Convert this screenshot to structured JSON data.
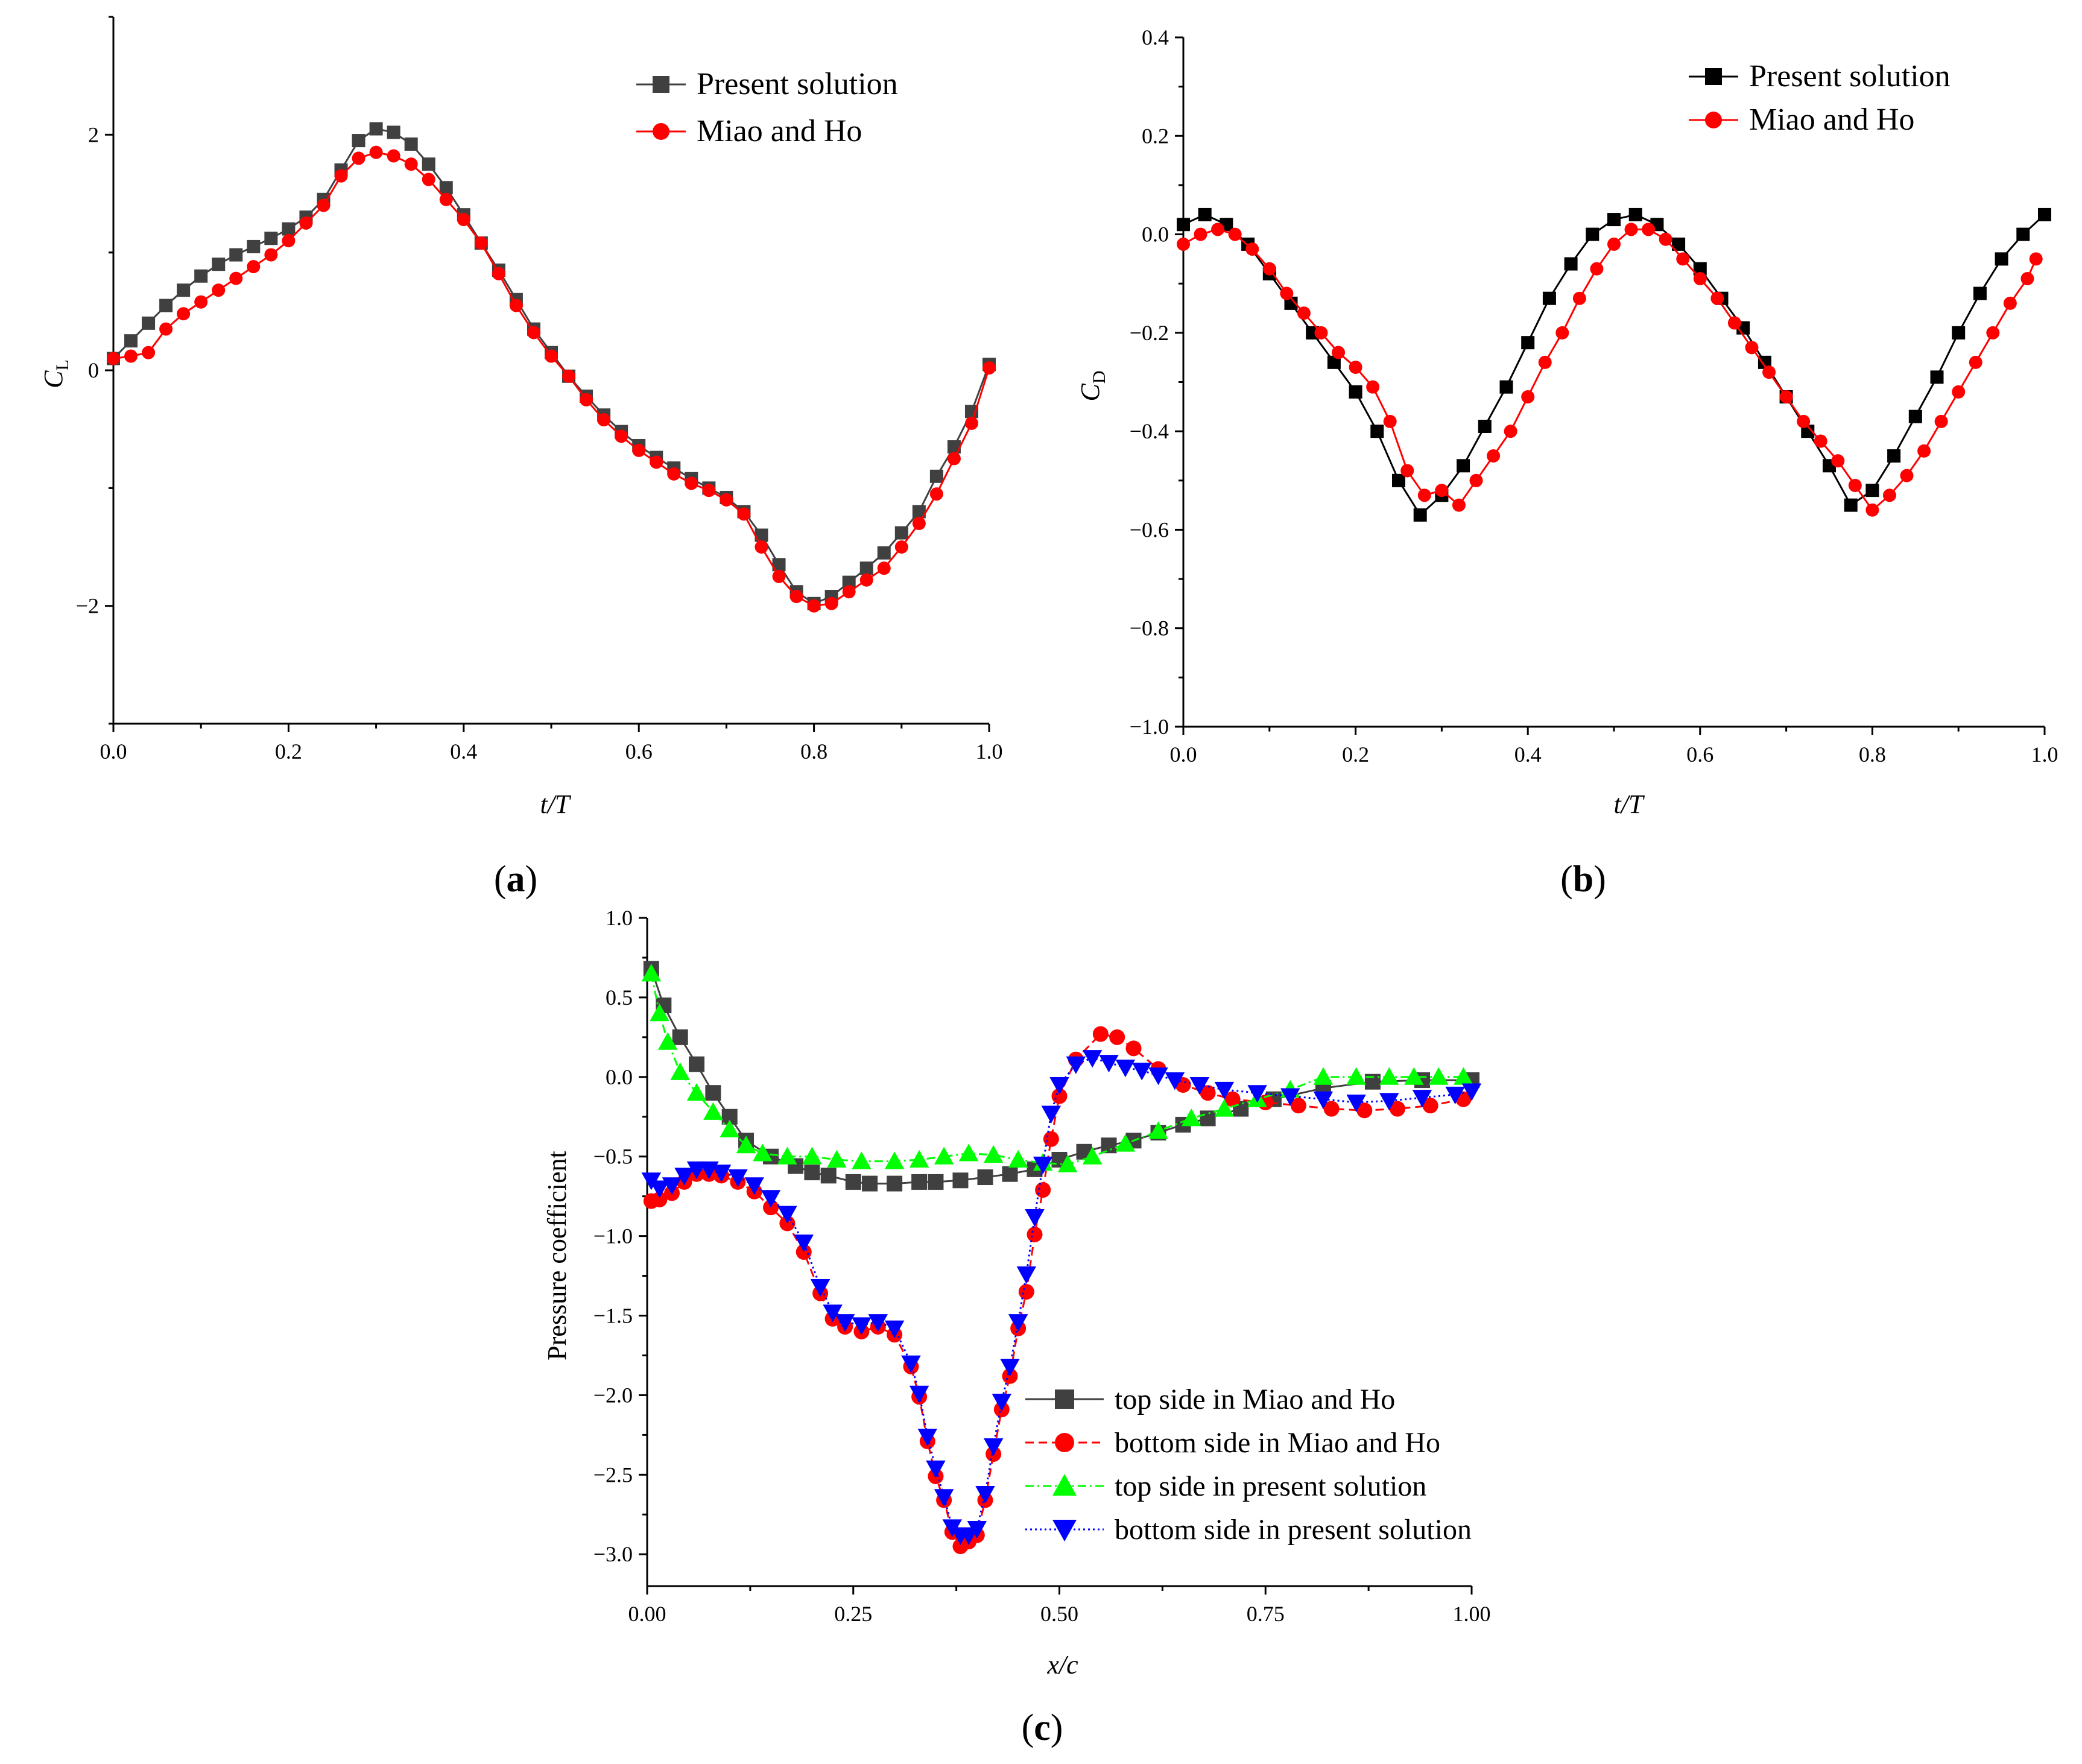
{
  "colors": {
    "black_series": "#000000",
    "gray_series": "#404040",
    "red_series": "#ff0000",
    "green_series": "#00ff00",
    "blue_series": "#0000ff"
  },
  "panels": {
    "a": {
      "label_prefix": "(",
      "label_letter": "a",
      "label_suffix": ")"
    },
    "b": {
      "label_prefix": "(",
      "label_letter": "b",
      "label_suffix": ")"
    },
    "c": {
      "label_prefix": "(",
      "label_letter": "c",
      "label_suffix": ")"
    }
  },
  "chart_data": [
    {
      "id": "a",
      "type": "line",
      "xlabel": "t/T",
      "ylabel_main": "C",
      "ylabel_sub": "L",
      "xlim": [
        0,
        1
      ],
      "ylim": [
        -3,
        3
      ],
      "xticks": [
        "0.0",
        "0.2",
        "0.4",
        "0.6",
        "0.8",
        "1.0"
      ],
      "yticks": [
        "−2",
        "0",
        "2"
      ],
      "legend_position": "top-right",
      "series": [
        {
          "name": "Present solution",
          "color": "#404040",
          "marker": "square",
          "x": [
            0.0,
            0.02,
            0.04,
            0.06,
            0.08,
            0.1,
            0.12,
            0.14,
            0.16,
            0.18,
            0.2,
            0.22,
            0.24,
            0.26,
            0.28,
            0.3,
            0.32,
            0.34,
            0.36,
            0.38,
            0.4,
            0.42,
            0.44,
            0.46,
            0.48,
            0.5,
            0.52,
            0.54,
            0.56,
            0.58,
            0.6,
            0.62,
            0.64,
            0.66,
            0.68,
            0.7,
            0.72,
            0.74,
            0.76,
            0.78,
            0.8,
            0.82,
            0.84,
            0.86,
            0.88,
            0.9,
            0.92,
            0.94,
            0.96,
            0.98,
            1.0
          ],
          "y": [
            0.1,
            0.25,
            0.4,
            0.55,
            0.68,
            0.8,
            0.9,
            0.98,
            1.05,
            1.12,
            1.2,
            1.3,
            1.45,
            1.7,
            1.95,
            2.05,
            2.02,
            1.92,
            1.75,
            1.55,
            1.32,
            1.08,
            0.85,
            0.6,
            0.35,
            0.15,
            -0.05,
            -0.22,
            -0.38,
            -0.52,
            -0.64,
            -0.74,
            -0.83,
            -0.92,
            -1.0,
            -1.08,
            -1.2,
            -1.4,
            -1.65,
            -1.88,
            -1.98,
            -1.92,
            -1.8,
            -1.68,
            -1.55,
            -1.38,
            -1.2,
            -0.9,
            -0.65,
            -0.35,
            0.05
          ]
        },
        {
          "name": "Miao and Ho",
          "color": "#ff0000",
          "marker": "circle",
          "x": [
            0.0,
            0.02,
            0.04,
            0.06,
            0.08,
            0.1,
            0.12,
            0.14,
            0.16,
            0.18,
            0.2,
            0.22,
            0.24,
            0.26,
            0.28,
            0.3,
            0.32,
            0.34,
            0.36,
            0.38,
            0.4,
            0.42,
            0.44,
            0.46,
            0.48,
            0.5,
            0.52,
            0.54,
            0.56,
            0.58,
            0.6,
            0.62,
            0.64,
            0.66,
            0.68,
            0.7,
            0.72,
            0.74,
            0.76,
            0.78,
            0.8,
            0.82,
            0.84,
            0.86,
            0.88,
            0.9,
            0.92,
            0.94,
            0.96,
            0.98,
            1.0
          ],
          "y": [
            0.1,
            0.12,
            0.15,
            0.35,
            0.48,
            0.58,
            0.68,
            0.78,
            0.88,
            0.98,
            1.1,
            1.25,
            1.4,
            1.65,
            1.8,
            1.85,
            1.82,
            1.75,
            1.62,
            1.45,
            1.28,
            1.08,
            0.82,
            0.55,
            0.32,
            0.12,
            -0.05,
            -0.25,
            -0.42,
            -0.56,
            -0.68,
            -0.78,
            -0.88,
            -0.96,
            -1.02,
            -1.1,
            -1.22,
            -1.5,
            -1.75,
            -1.92,
            -2.0,
            -1.98,
            -1.88,
            -1.78,
            -1.68,
            -1.5,
            -1.3,
            -1.05,
            -0.75,
            -0.45,
            0.02
          ]
        }
      ]
    },
    {
      "id": "b",
      "type": "line",
      "xlabel": "t/T",
      "ylabel_main": "C",
      "ylabel_sub": "D",
      "xlim": [
        0,
        1
      ],
      "ylim": [
        -1.0,
        0.4
      ],
      "xticks": [
        "0.0",
        "0.2",
        "0.4",
        "0.6",
        "0.8",
        "1.0"
      ],
      "yticks": [
        "−1.0",
        "−0.8",
        "−0.6",
        "−0.4",
        "−0.2",
        "0.0",
        "0.2",
        "0.4"
      ],
      "legend_position": "top-right",
      "series": [
        {
          "name": "Present solution",
          "color": "#000000",
          "marker": "square",
          "x": [
            0.0,
            0.025,
            0.05,
            0.075,
            0.1,
            0.125,
            0.15,
            0.175,
            0.2,
            0.225,
            0.25,
            0.275,
            0.3,
            0.325,
            0.35,
            0.375,
            0.4,
            0.425,
            0.45,
            0.475,
            0.5,
            0.525,
            0.55,
            0.575,
            0.6,
            0.625,
            0.65,
            0.675,
            0.7,
            0.725,
            0.75,
            0.775,
            0.8,
            0.825,
            0.85,
            0.875,
            0.9,
            0.925,
            0.95,
            0.975,
            1.0
          ],
          "y": [
            0.02,
            0.04,
            0.02,
            -0.02,
            -0.08,
            -0.14,
            -0.2,
            -0.26,
            -0.32,
            -0.4,
            -0.5,
            -0.57,
            -0.53,
            -0.47,
            -0.39,
            -0.31,
            -0.22,
            -0.13,
            -0.06,
            0.0,
            0.03,
            0.04,
            0.02,
            -0.02,
            -0.07,
            -0.13,
            -0.19,
            -0.26,
            -0.33,
            -0.4,
            -0.47,
            -0.55,
            -0.52,
            -0.45,
            -0.37,
            -0.29,
            -0.2,
            -0.12,
            -0.05,
            0.0,
            0.04
          ]
        },
        {
          "name": "Miao and Ho",
          "color": "#ff0000",
          "marker": "circle",
          "x": [
            0.0,
            0.02,
            0.04,
            0.06,
            0.08,
            0.1,
            0.12,
            0.14,
            0.16,
            0.18,
            0.2,
            0.22,
            0.24,
            0.26,
            0.28,
            0.3,
            0.32,
            0.34,
            0.36,
            0.38,
            0.4,
            0.42,
            0.44,
            0.46,
            0.48,
            0.5,
            0.52,
            0.54,
            0.56,
            0.58,
            0.6,
            0.62,
            0.64,
            0.66,
            0.68,
            0.7,
            0.72,
            0.74,
            0.76,
            0.78,
            0.8,
            0.82,
            0.84,
            0.86,
            0.88,
            0.9,
            0.92,
            0.94,
            0.96,
            0.98,
            0.99
          ],
          "y": [
            -0.02,
            0.0,
            0.01,
            0.0,
            -0.03,
            -0.07,
            -0.12,
            -0.16,
            -0.2,
            -0.24,
            -0.27,
            -0.31,
            -0.38,
            -0.48,
            -0.53,
            -0.52,
            -0.55,
            -0.5,
            -0.45,
            -0.4,
            -0.33,
            -0.26,
            -0.2,
            -0.13,
            -0.07,
            -0.02,
            0.01,
            0.01,
            -0.01,
            -0.05,
            -0.09,
            -0.13,
            -0.18,
            -0.23,
            -0.28,
            -0.33,
            -0.38,
            -0.42,
            -0.46,
            -0.51,
            -0.56,
            -0.53,
            -0.49,
            -0.44,
            -0.38,
            -0.32,
            -0.26,
            -0.2,
            -0.14,
            -0.09,
            -0.05
          ]
        }
      ]
    },
    {
      "id": "c",
      "type": "line",
      "xlabel": "x/c",
      "ylabel": "Pressure coefficient",
      "xlim": [
        0,
        1
      ],
      "ylim": [
        -3.2,
        1.0
      ],
      "xticks": [
        "0.00",
        "0.25",
        "0.50",
        "0.75",
        "1.00"
      ],
      "yticks": [
        "−3.0",
        "−2.5",
        "−2.0",
        "−1.5",
        "−1.0",
        "−0.5",
        "0.0",
        "0.5",
        "1.0"
      ],
      "legend_position": "bottom-center",
      "series": [
        {
          "name": "top side in Miao and Ho",
          "color": "#404040",
          "marker": "square",
          "line": "solid",
          "x": [
            0.005,
            0.02,
            0.04,
            0.06,
            0.08,
            0.1,
            0.12,
            0.15,
            0.18,
            0.2,
            0.22,
            0.25,
            0.27,
            0.3,
            0.33,
            0.35,
            0.38,
            0.41,
            0.44,
            0.47,
            0.5,
            0.53,
            0.56,
            0.59,
            0.62,
            0.65,
            0.68,
            0.72,
            0.76,
            0.82,
            0.88,
            0.94,
            1.0
          ],
          "y": [
            0.68,
            0.45,
            0.25,
            0.08,
            -0.1,
            -0.25,
            -0.4,
            -0.5,
            -0.56,
            -0.6,
            -0.62,
            -0.66,
            -0.67,
            -0.67,
            -0.66,
            -0.66,
            -0.65,
            -0.63,
            -0.61,
            -0.58,
            -0.52,
            -0.47,
            -0.43,
            -0.4,
            -0.35,
            -0.3,
            -0.26,
            -0.2,
            -0.14,
            -0.07,
            -0.03,
            -0.02,
            -0.02
          ]
        },
        {
          "name": "bottom side in Miao and Ho",
          "color": "#ff0000",
          "marker": "circle",
          "line": "dashed",
          "x": [
            0.005,
            0.015,
            0.03,
            0.045,
            0.06,
            0.075,
            0.09,
            0.11,
            0.13,
            0.15,
            0.17,
            0.19,
            0.21,
            0.225,
            0.24,
            0.26,
            0.28,
            0.3,
            0.32,
            0.33,
            0.34,
            0.35,
            0.36,
            0.37,
            0.38,
            0.39,
            0.4,
            0.41,
            0.42,
            0.43,
            0.44,
            0.45,
            0.46,
            0.47,
            0.48,
            0.49,
            0.5,
            0.52,
            0.55,
            0.57,
            0.59,
            0.62,
            0.65,
            0.68,
            0.71,
            0.75,
            0.79,
            0.83,
            0.87,
            0.91,
            0.95,
            0.99
          ],
          "y": [
            -0.78,
            -0.77,
            -0.73,
            -0.66,
            -0.61,
            -0.61,
            -0.62,
            -0.66,
            -0.72,
            -0.82,
            -0.92,
            -1.1,
            -1.36,
            -1.52,
            -1.57,
            -1.6,
            -1.57,
            -1.62,
            -1.82,
            -2.01,
            -2.29,
            -2.51,
            -2.66,
            -2.86,
            -2.95,
            -2.92,
            -2.88,
            -2.66,
            -2.37,
            -2.09,
            -1.88,
            -1.58,
            -1.35,
            -0.99,
            -0.71,
            -0.39,
            -0.12,
            0.11,
            0.27,
            0.25,
            0.18,
            0.05,
            -0.05,
            -0.1,
            -0.14,
            -0.16,
            -0.18,
            -0.2,
            -0.21,
            -0.2,
            -0.18,
            -0.14
          ]
        },
        {
          "name": "top side in present solution",
          "color": "#00ff00",
          "marker": "triangle-up",
          "line": "dashdot",
          "x": [
            0.005,
            0.015,
            0.025,
            0.04,
            0.06,
            0.08,
            0.1,
            0.12,
            0.14,
            0.17,
            0.2,
            0.23,
            0.26,
            0.3,
            0.33,
            0.36,
            0.39,
            0.42,
            0.45,
            0.48,
            0.51,
            0.54,
            0.58,
            0.62,
            0.66,
            0.7,
            0.74,
            0.78,
            0.82,
            0.86,
            0.9,
            0.93,
            0.96,
            0.99
          ],
          "y": [
            0.65,
            0.4,
            0.22,
            0.03,
            -0.1,
            -0.22,
            -0.33,
            -0.43,
            -0.48,
            -0.5,
            -0.5,
            -0.52,
            -0.53,
            -0.53,
            -0.52,
            -0.5,
            -0.48,
            -0.49,
            -0.52,
            -0.54,
            -0.55,
            -0.5,
            -0.42,
            -0.34,
            -0.26,
            -0.2,
            -0.14,
            -0.08,
            0.0,
            0.0,
            0.0,
            0.0,
            0.0,
            0.0
          ]
        },
        {
          "name": "bottom side in present solution",
          "color": "#0000ff",
          "marker": "triangle-down",
          "line": "dotted",
          "x": [
            0.005,
            0.015,
            0.03,
            0.045,
            0.06,
            0.075,
            0.09,
            0.11,
            0.13,
            0.15,
            0.17,
            0.19,
            0.21,
            0.225,
            0.24,
            0.26,
            0.28,
            0.3,
            0.32,
            0.33,
            0.34,
            0.35,
            0.36,
            0.37,
            0.38,
            0.39,
            0.4,
            0.41,
            0.42,
            0.43,
            0.44,
            0.45,
            0.46,
            0.47,
            0.48,
            0.49,
            0.5,
            0.52,
            0.54,
            0.56,
            0.58,
            0.6,
            0.62,
            0.64,
            0.67,
            0.7,
            0.74,
            0.78,
            0.82,
            0.86,
            0.9,
            0.94,
            0.98,
            1.0
          ],
          "y": [
            -0.65,
            -0.7,
            -0.68,
            -0.62,
            -0.58,
            -0.58,
            -0.6,
            -0.63,
            -0.68,
            -0.76,
            -0.86,
            -1.04,
            -1.32,
            -1.48,
            -1.54,
            -1.56,
            -1.54,
            -1.58,
            -1.8,
            -1.99,
            -2.26,
            -2.46,
            -2.64,
            -2.83,
            -2.88,
            -2.88,
            -2.84,
            -2.62,
            -2.32,
            -2.04,
            -1.82,
            -1.54,
            -1.24,
            -0.88,
            -0.55,
            -0.23,
            -0.05,
            0.08,
            0.12,
            0.09,
            0.06,
            0.04,
            0.01,
            -0.02,
            -0.05,
            -0.08,
            -0.1,
            -0.12,
            -0.14,
            -0.16,
            -0.15,
            -0.13,
            -0.11,
            -0.09
          ]
        }
      ]
    }
  ]
}
